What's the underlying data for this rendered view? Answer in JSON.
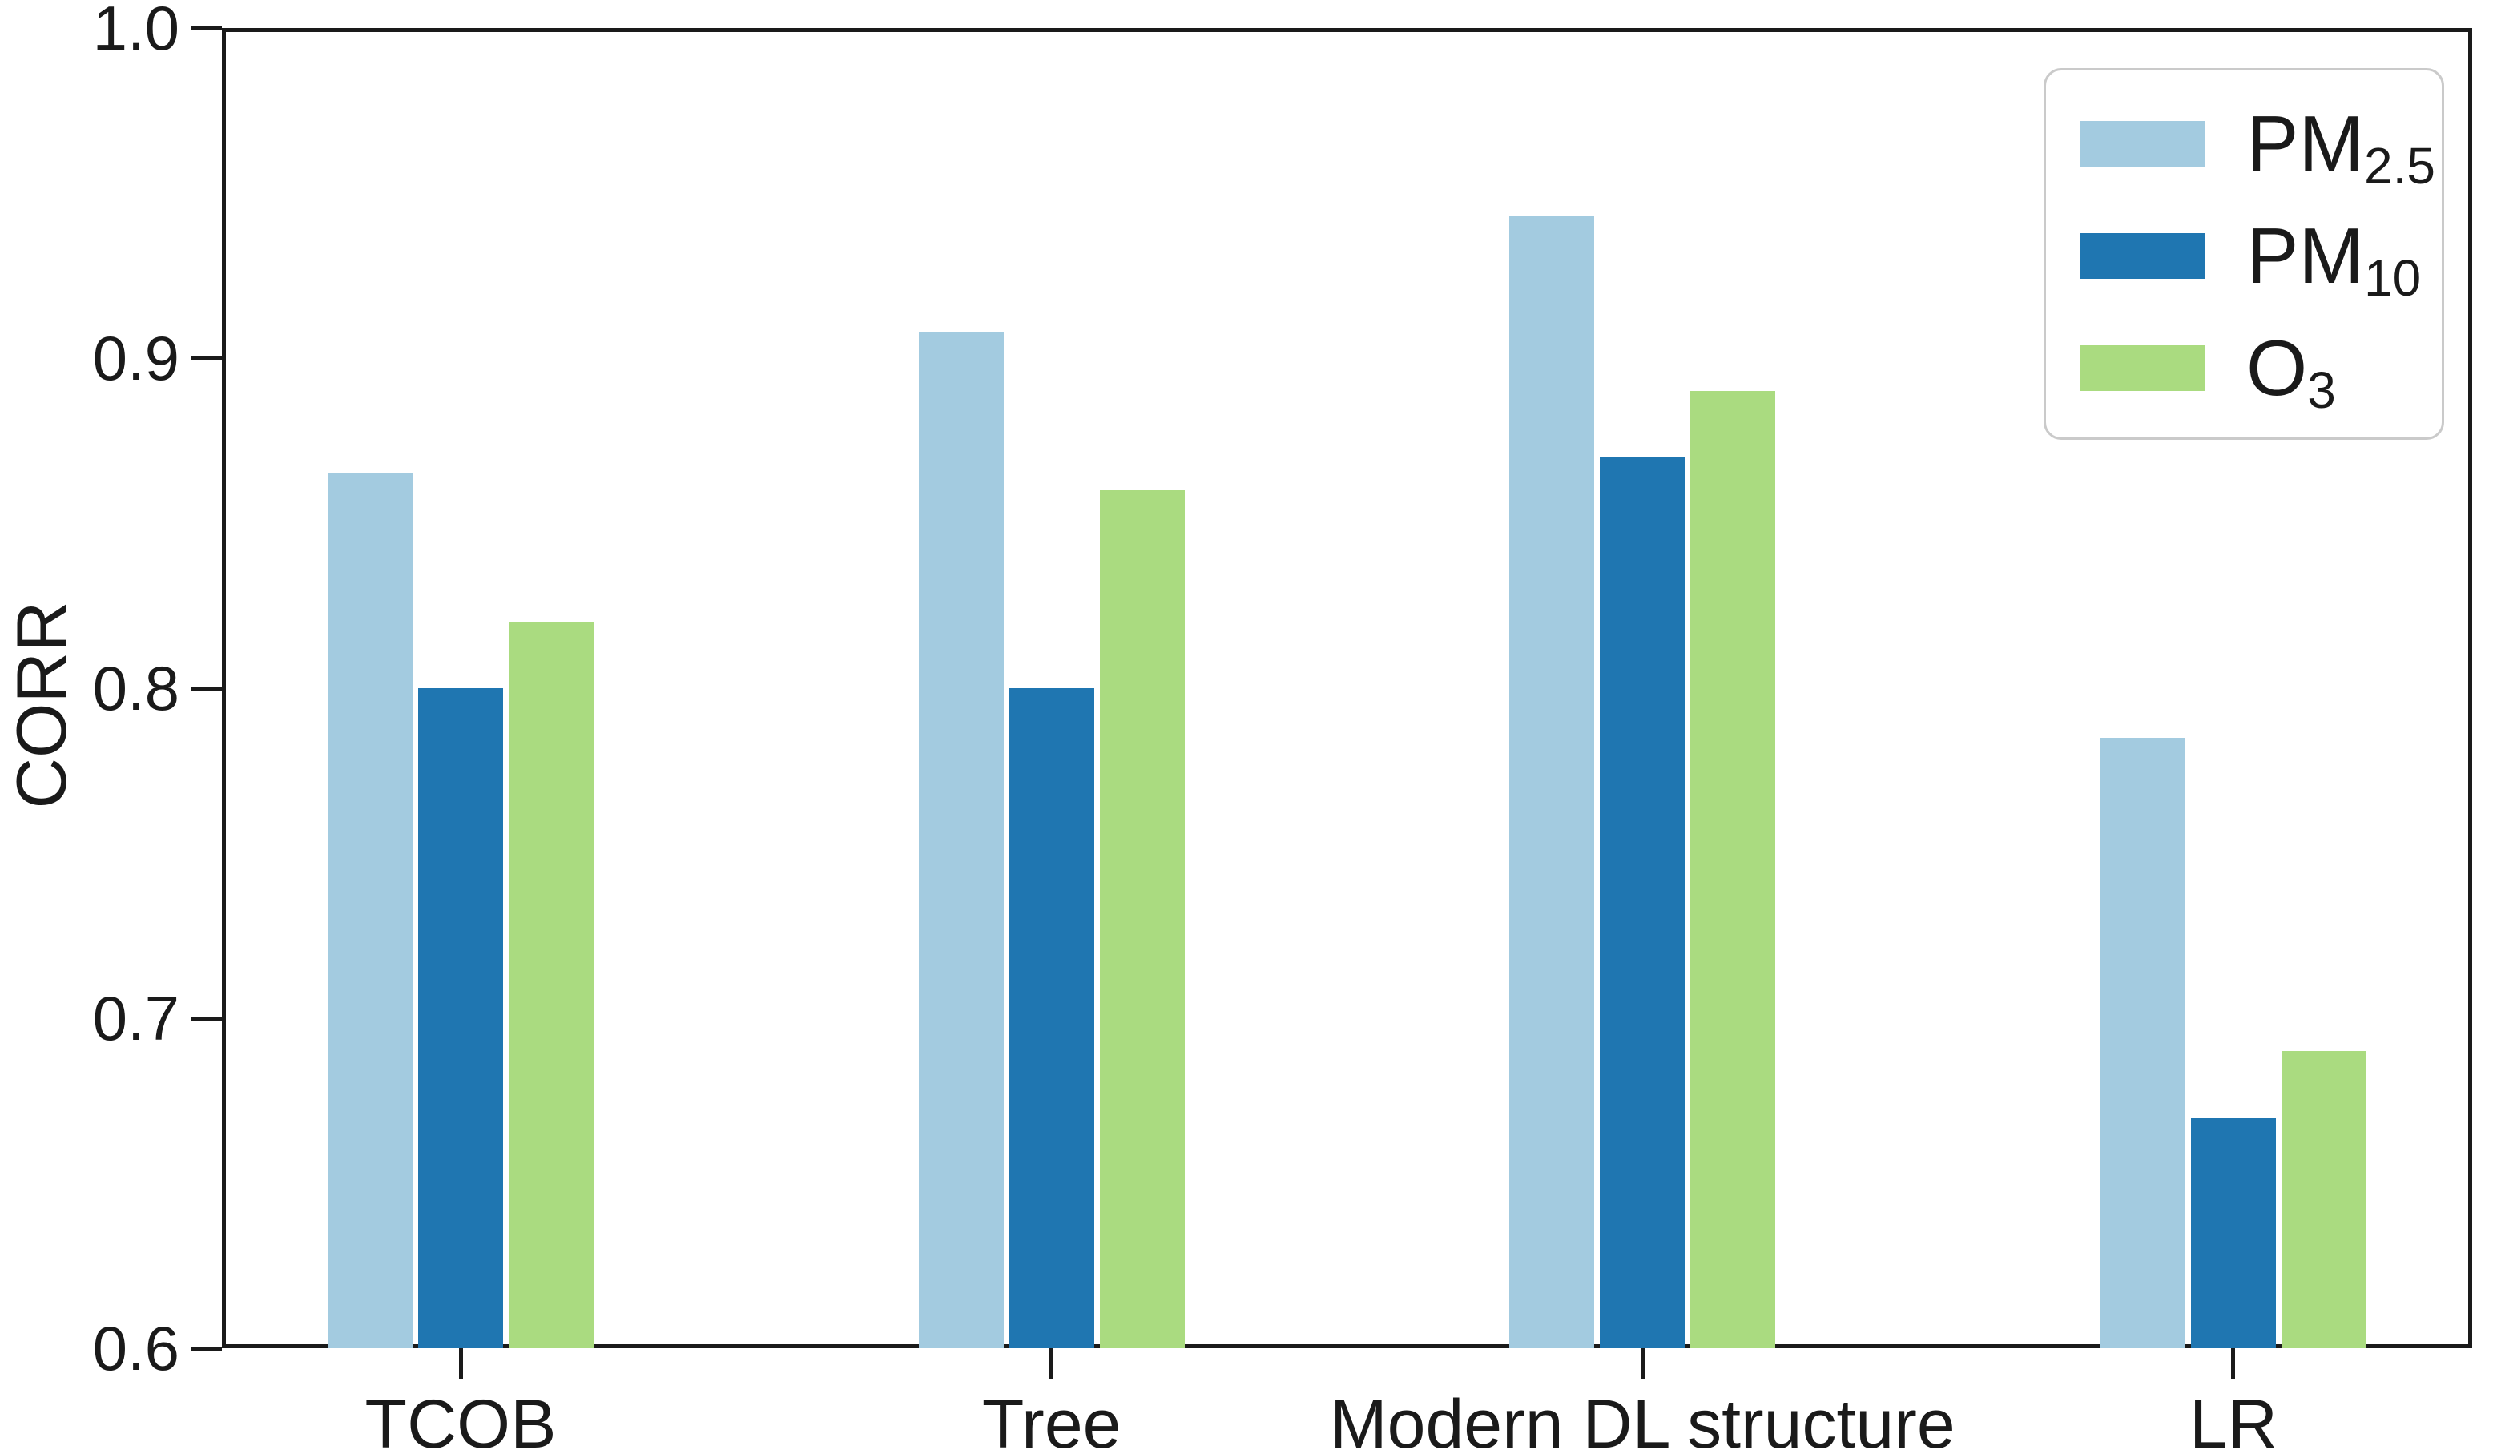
{
  "chart_data": {
    "type": "bar",
    "title": "",
    "xlabel": "",
    "ylabel": "CORR",
    "categories": [
      "TCOB",
      "Tree",
      "Modern DL structure",
      "LR"
    ],
    "series": [
      {
        "name": "PM2.5",
        "label_main": "PM",
        "label_sub": "2.5",
        "color": "#a3cbe0",
        "values": [
          0.865,
          0.908,
          0.943,
          0.785
        ]
      },
      {
        "name": "PM10",
        "label_main": "PM",
        "label_sub": "10",
        "color": "#1f76b1",
        "values": [
          0.8,
          0.8,
          0.87,
          0.67
        ]
      },
      {
        "name": "O3",
        "label_main": "O",
        "label_sub": "3",
        "color": "#aadb80",
        "values": [
          0.82,
          0.86,
          0.89,
          0.69
        ]
      }
    ],
    "ylim": [
      0.6,
      1.0
    ],
    "yticks": [
      0.6,
      0.7,
      0.8,
      0.9,
      1.0
    ],
    "ytick_labels": [
      "0.6",
      "0.7",
      "0.8",
      "0.9",
      "1.0"
    ],
    "grid": false,
    "legend_position": "upper right",
    "axis_color": "#1a1a1a",
    "background_color": "#ffffff"
  }
}
